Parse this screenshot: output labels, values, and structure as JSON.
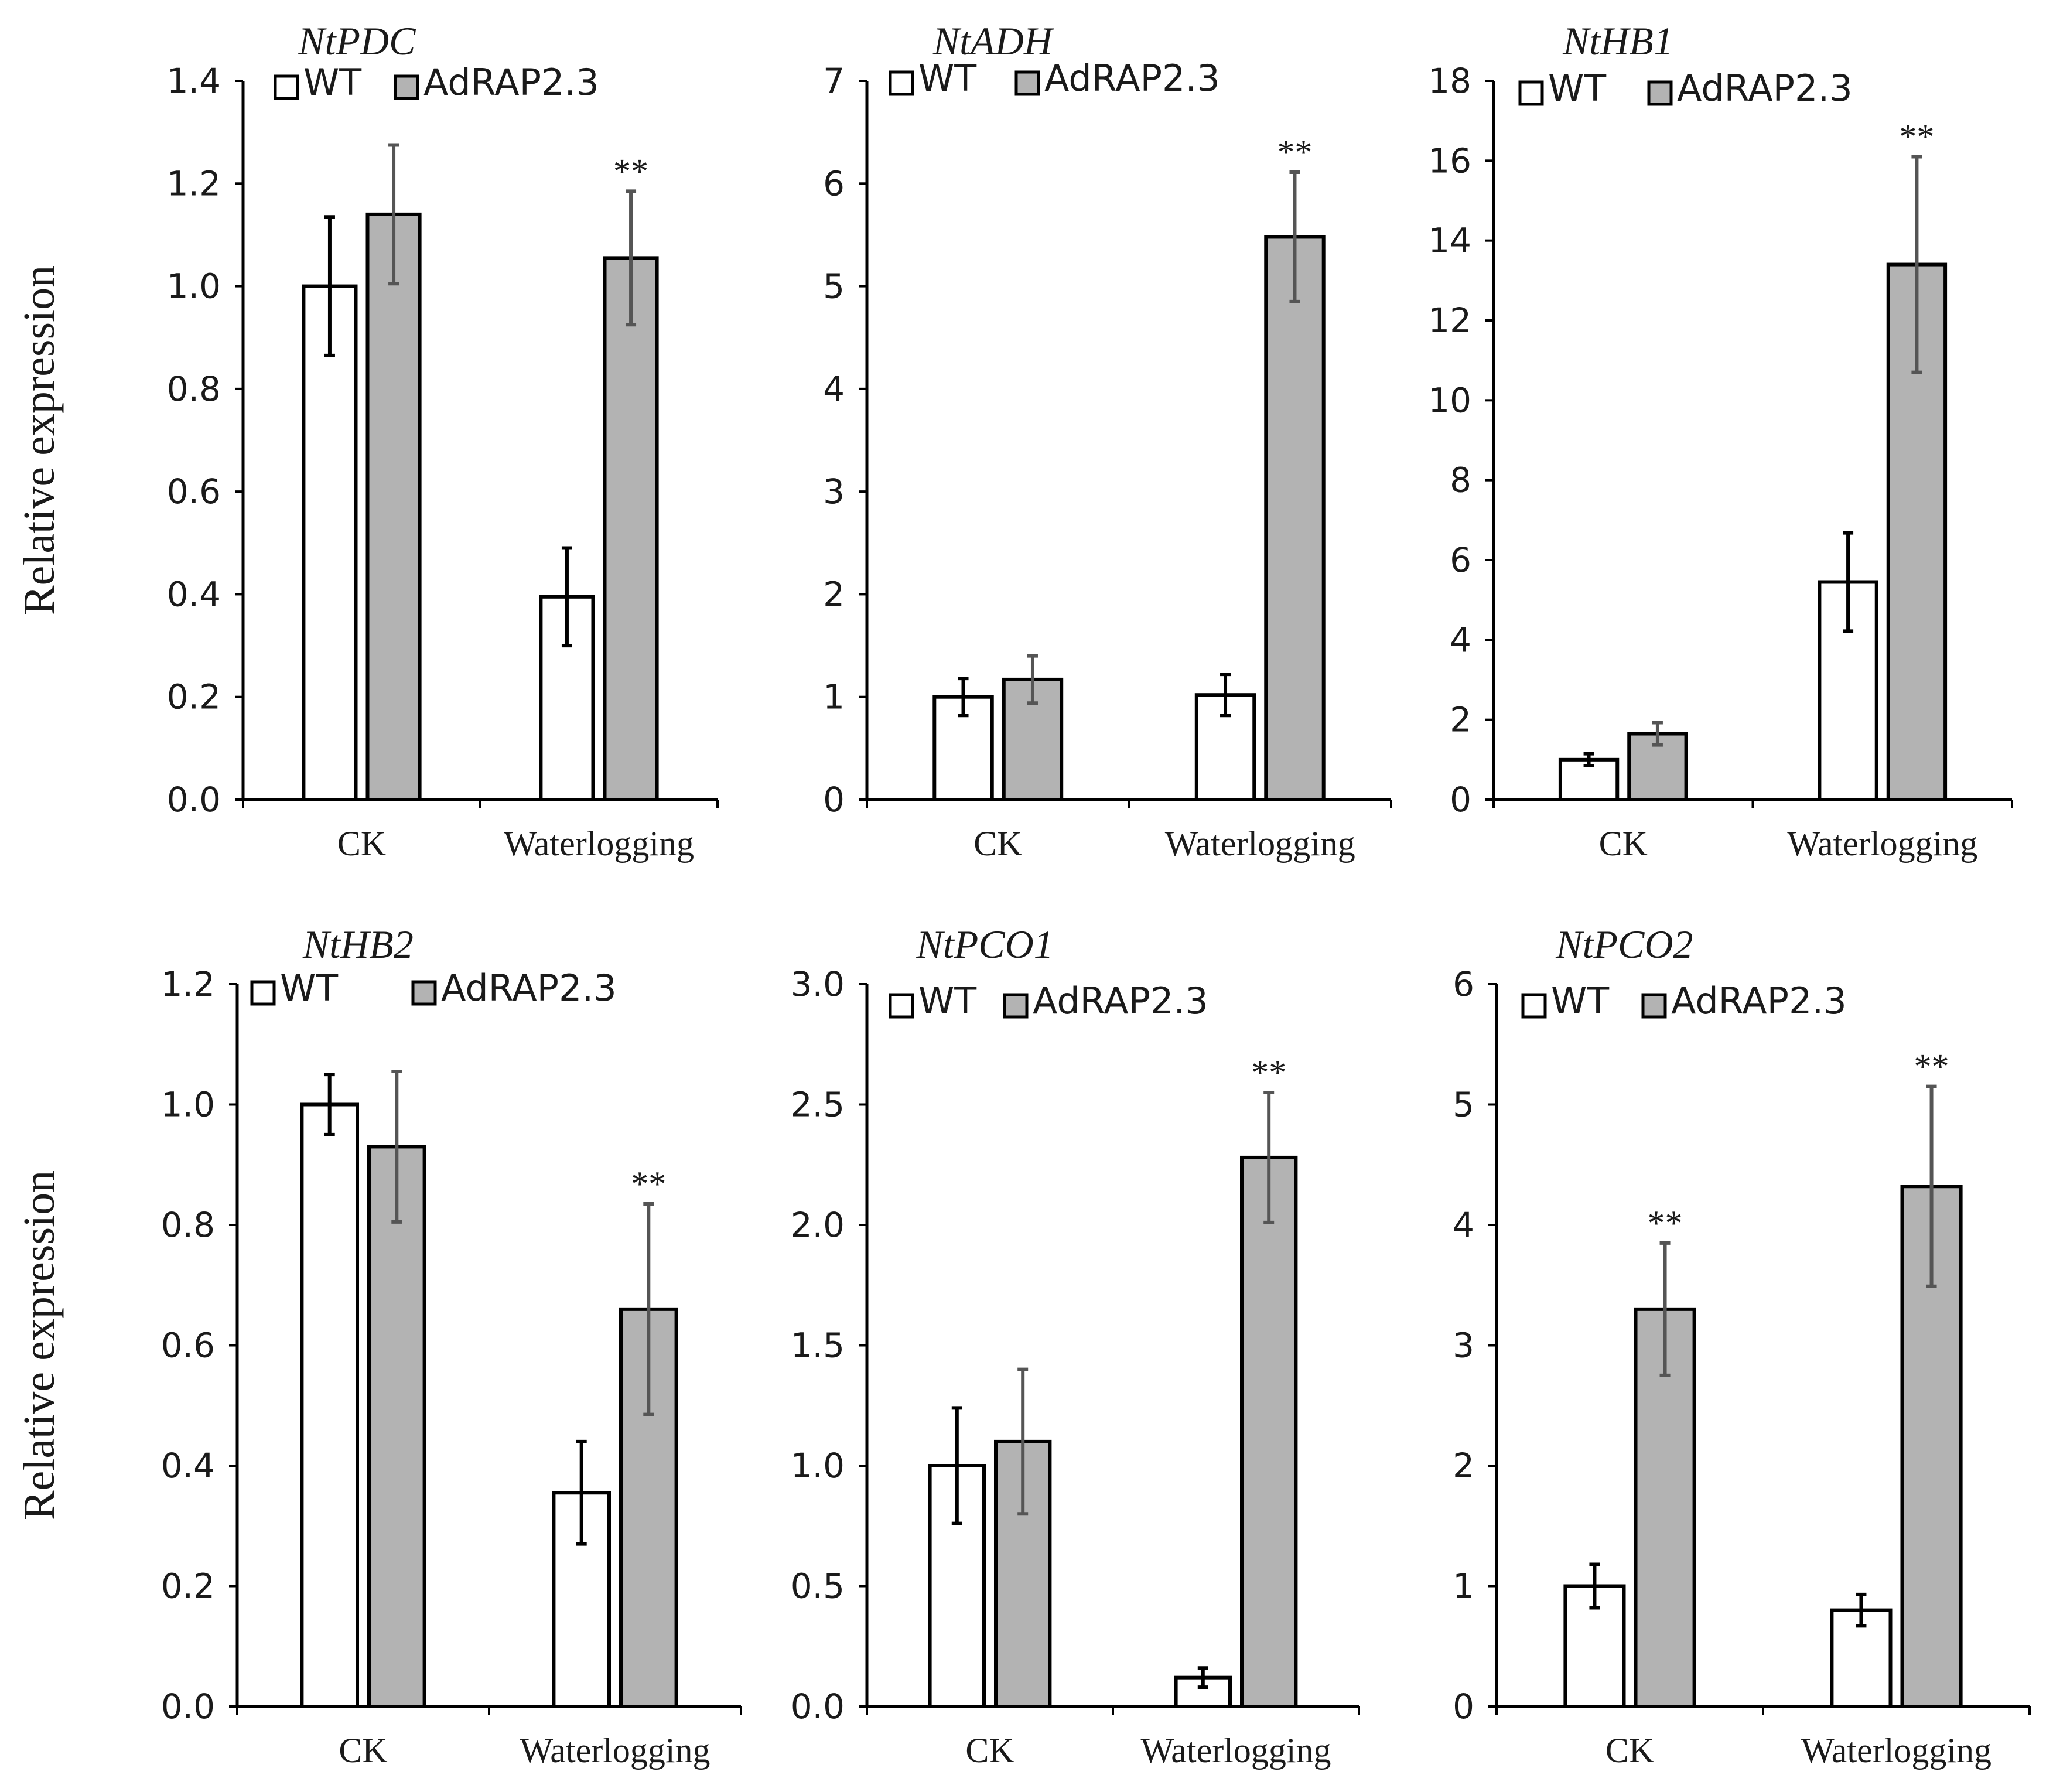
{
  "figure": {
    "ylabel": "Relative expression",
    "colors": {
      "wt_fill": "#ffffff",
      "adrap_fill": "#b3b3b3",
      "axis": "#000000",
      "wt_error": "#000000",
      "adrap_error": "#555555"
    }
  },
  "chart_data": [
    {
      "type": "bar",
      "title": "NtPDC",
      "categories": [
        "CK",
        "Waterlogging"
      ],
      "series": [
        {
          "name": "WT",
          "values": [
            1.0,
            0.395
          ],
          "errors": [
            0.135,
            0.095
          ]
        },
        {
          "name": "AdRAP2.3",
          "values": [
            1.14,
            1.055
          ],
          "errors": [
            0.135,
            0.13
          ]
        }
      ],
      "significance": [
        null,
        "**"
      ],
      "ylim": [
        0,
        1.4
      ],
      "yticks": [
        "0.0",
        "0.2",
        "0.4",
        "0.6",
        "0.8",
        "1.0",
        "1.2",
        "1.4"
      ],
      "ylabel": "Relative expression",
      "legend": "top-left"
    },
    {
      "type": "bar",
      "title": "NtADH",
      "categories": [
        "CK",
        "Waterlogging"
      ],
      "series": [
        {
          "name": "WT",
          "values": [
            1.0,
            1.02
          ],
          "errors": [
            0.18,
            0.2
          ]
        },
        {
          "name": "AdRAP2.3",
          "values": [
            1.17,
            5.48
          ],
          "errors": [
            0.23,
            0.63
          ]
        }
      ],
      "significance": [
        null,
        "**"
      ],
      "ylim": [
        0,
        7
      ],
      "yticks": [
        "0",
        "1",
        "2",
        "3",
        "4",
        "5",
        "6",
        "7"
      ],
      "ylabel": "",
      "legend": "top-left"
    },
    {
      "type": "bar",
      "title": "NtHB1",
      "categories": [
        "CK",
        "Waterlogging"
      ],
      "series": [
        {
          "name": "WT",
          "values": [
            1.0,
            5.45
          ],
          "errors": [
            0.15,
            1.23
          ]
        },
        {
          "name": "AdRAP2.3",
          "values": [
            1.65,
            13.4
          ],
          "errors": [
            0.28,
            2.7
          ]
        }
      ],
      "significance": [
        null,
        "**"
      ],
      "ylim": [
        0,
        18
      ],
      "yticks": [
        "0",
        "2",
        "4",
        "6",
        "8",
        "10",
        "12",
        "14",
        "16",
        "18"
      ],
      "ylabel": "",
      "legend": "top-left"
    },
    {
      "type": "bar",
      "title": "NtHB2",
      "categories": [
        "CK",
        "Waterlogging"
      ],
      "series": [
        {
          "name": "WT",
          "values": [
            1.0,
            0.355
          ],
          "errors": [
            0.05,
            0.085
          ]
        },
        {
          "name": "AdRAP2.3",
          "values": [
            0.93,
            0.66
          ],
          "errors": [
            0.125,
            0.175
          ]
        }
      ],
      "significance": [
        null,
        "**"
      ],
      "ylim": [
        0,
        1.2
      ],
      "yticks": [
        "0.0",
        "0.2",
        "0.4",
        "0.6",
        "0.8",
        "1.0",
        "1.2"
      ],
      "ylabel": "Relative expression",
      "legend": "top-left"
    },
    {
      "type": "bar",
      "title": "NtPCO1",
      "categories": [
        "CK",
        "Waterlogging"
      ],
      "series": [
        {
          "name": "WT",
          "values": [
            1.0,
            0.12
          ],
          "errors": [
            0.24,
            0.04
          ]
        },
        {
          "name": "AdRAP2.3",
          "values": [
            1.1,
            2.28
          ],
          "errors": [
            0.3,
            0.27
          ]
        }
      ],
      "significance": [
        null,
        "**"
      ],
      "ylim": [
        0,
        3.0
      ],
      "yticks": [
        "0.0",
        "0.5",
        "1.0",
        "1.5",
        "2.0",
        "2.5",
        "3.0"
      ],
      "ylabel": "",
      "legend": "top-left"
    },
    {
      "type": "bar",
      "title": "NtPCO2",
      "categories": [
        "CK",
        "Waterlogging"
      ],
      "series": [
        {
          "name": "WT",
          "values": [
            1.0,
            0.8
          ],
          "errors": [
            0.18,
            0.13
          ]
        },
        {
          "name": "AdRAP2.3",
          "values": [
            3.3,
            4.32
          ],
          "errors": [
            0.55,
            0.83
          ]
        }
      ],
      "significance": [
        "**",
        "**"
      ],
      "ylim": [
        0,
        6
      ],
      "yticks": [
        "0",
        "1",
        "2",
        "3",
        "4",
        "5",
        "6"
      ],
      "ylabel": "",
      "legend": "top-left"
    }
  ]
}
